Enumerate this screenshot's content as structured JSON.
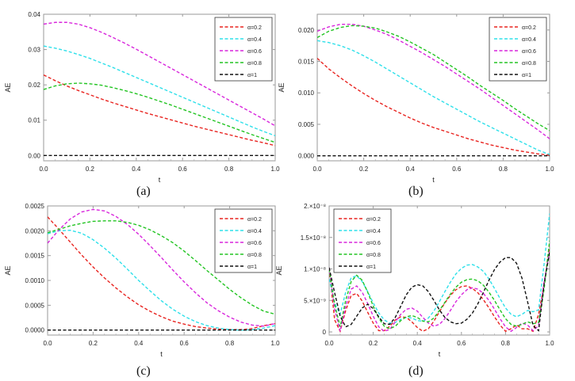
{
  "figure": {
    "captions": [
      "(a)",
      "(b)",
      "(c)",
      "(d)"
    ]
  },
  "chart_data": [
    {
      "type": "line",
      "panel": "(a)",
      "xlabel": "t",
      "ylabel": "AE",
      "xlim": [
        0,
        1
      ],
      "ylim": [
        -0.0015,
        0.04
      ],
      "xticks": [
        0,
        0.2,
        0.4,
        0.6,
        0.8,
        1
      ],
      "xtick_labels": [
        "0.0",
        "0.2",
        "0.4",
        "0.6",
        "0.8",
        "1.0"
      ],
      "yticks": [
        0,
        0.01,
        0.02,
        0.03,
        0.04
      ],
      "ytick_labels": [
        "0.00",
        "0.01",
        "0.02",
        "0.03",
        "0.04"
      ],
      "legend_position": "top-right",
      "x": [
        0,
        0.05,
        0.1,
        0.15,
        0.2,
        0.25,
        0.3,
        0.35,
        0.4,
        0.45,
        0.5,
        0.55,
        0.6,
        0.65,
        0.7,
        0.75,
        0.8,
        0.85,
        0.9,
        0.95,
        1
      ],
      "series": [
        {
          "name": "α=0.2",
          "color": "#e8231f",
          "values": [
            0.0228,
            0.0212,
            0.0197,
            0.0184,
            0.0172,
            0.016,
            0.0149,
            0.0139,
            0.0129,
            0.0119,
            0.011,
            0.0101,
            0.0092,
            0.0083,
            0.0075,
            0.0067,
            0.0059,
            0.0051,
            0.0043,
            0.0036,
            0.0028
          ]
        },
        {
          "name": "α=0.4",
          "color": "#2ee0ea",
          "values": [
            0.031,
            0.0304,
            0.0296,
            0.0286,
            0.0275,
            0.0262,
            0.0249,
            0.0235,
            0.0221,
            0.0207,
            0.0193,
            0.0179,
            0.0165,
            0.0151,
            0.0137,
            0.0123,
            0.0109,
            0.0095,
            0.0081,
            0.0068,
            0.0056
          ]
        },
        {
          "name": "α=0.6",
          "color": "#d826dc",
          "values": [
            0.0372,
            0.0377,
            0.0377,
            0.0372,
            0.0362,
            0.0349,
            0.0334,
            0.0318,
            0.0301,
            0.0283,
            0.0265,
            0.0247,
            0.0229,
            0.0211,
            0.0193,
            0.0175,
            0.0157,
            0.0139,
            0.0121,
            0.0103,
            0.0084
          ]
        },
        {
          "name": "α=0.8",
          "color": "#22c422",
          "values": [
            0.0187,
            0.0197,
            0.0203,
            0.0205,
            0.0203,
            0.0199,
            0.0192,
            0.0184,
            0.0175,
            0.0165,
            0.0154,
            0.0143,
            0.0131,
            0.0119,
            0.0107,
            0.0095,
            0.0083,
            0.0071,
            0.0059,
            0.0048,
            0.0037
          ]
        },
        {
          "name": "α=1",
          "color": "#111111",
          "values": [
            0,
            0,
            0,
            0,
            0,
            0,
            0,
            0,
            0,
            0,
            0,
            0,
            0,
            0,
            0,
            0,
            0,
            0,
            0,
            0,
            0
          ]
        }
      ]
    },
    {
      "type": "line",
      "panel": "(b)",
      "xlabel": "t",
      "ylabel": "AE",
      "xlim": [
        0,
        1
      ],
      "ylim": [
        -0.0008,
        0.0225
      ],
      "xticks": [
        0,
        0.2,
        0.4,
        0.6,
        0.8,
        1
      ],
      "xtick_labels": [
        "0.0",
        "0.2",
        "0.4",
        "0.6",
        "0.8",
        "1.0"
      ],
      "yticks": [
        0,
        0.005,
        0.01,
        0.015,
        0.02
      ],
      "ytick_labels": [
        "0.000",
        "0.005",
        "0.010",
        "0.015",
        "0.020"
      ],
      "legend_position": "top-right",
      "x": [
        0,
        0.05,
        0.1,
        0.15,
        0.2,
        0.25,
        0.3,
        0.35,
        0.4,
        0.45,
        0.5,
        0.55,
        0.6,
        0.65,
        0.7,
        0.75,
        0.8,
        0.85,
        0.9,
        0.95,
        1
      ],
      "series": [
        {
          "name": "α=0.2",
          "color": "#e8231f",
          "values": [
            0.0155,
            0.0138,
            0.0124,
            0.0111,
            0.0099,
            0.0088,
            0.0078,
            0.0069,
            0.006,
            0.0052,
            0.0045,
            0.0039,
            0.0033,
            0.0027,
            0.0022,
            0.0017,
            0.0013,
            0.0009,
            0.0006,
            0.0003,
            0.0001
          ]
        },
        {
          "name": "α=0.4",
          "color": "#2ee0ea",
          "values": [
            0.0183,
            0.018,
            0.0175,
            0.0168,
            0.0159,
            0.0149,
            0.0138,
            0.0127,
            0.0116,
            0.0105,
            0.0094,
            0.0084,
            0.0074,
            0.0064,
            0.0054,
            0.0045,
            0.0036,
            0.0027,
            0.0018,
            0.0009,
            0.0002
          ]
        },
        {
          "name": "α=0.6",
          "color": "#d826dc",
          "values": [
            0.0198,
            0.0205,
            0.0209,
            0.0209,
            0.0206,
            0.02,
            0.0193,
            0.0184,
            0.0174,
            0.0164,
            0.0153,
            0.0142,
            0.013,
            0.0118,
            0.0106,
            0.0093,
            0.008,
            0.0067,
            0.0054,
            0.0041,
            0.0027
          ]
        },
        {
          "name": "α=0.8",
          "color": "#22c422",
          "values": [
            0.0188,
            0.0198,
            0.0204,
            0.0207,
            0.0206,
            0.0203,
            0.0197,
            0.019,
            0.0181,
            0.0171,
            0.0161,
            0.0149,
            0.0137,
            0.0125,
            0.0112,
            0.01,
            0.0088,
            0.0075,
            0.0063,
            0.0051,
            0.004
          ]
        },
        {
          "name": "α=1",
          "color": "#111111",
          "values": [
            0,
            0,
            0,
            0,
            0,
            0,
            0,
            0,
            0,
            0,
            0,
            0,
            0,
            0,
            0,
            0,
            0,
            0,
            0,
            0,
            0
          ]
        }
      ]
    },
    {
      "type": "line",
      "panel": "(c)",
      "xlabel": "t",
      "ylabel": "AE",
      "xlim": [
        0,
        1
      ],
      "ylim": [
        -0.0001,
        0.0025
      ],
      "xticks": [
        0,
        0.2,
        0.4,
        0.6,
        0.8,
        1
      ],
      "xtick_labels": [
        "0.0",
        "0.2",
        "0.4",
        "0.6",
        "0.8",
        "1.0"
      ],
      "yticks": [
        0,
        0.0005,
        0.001,
        0.0015,
        0.002,
        0.0025
      ],
      "ytick_labels": [
        "0.0000",
        "0.0005",
        "0.0010",
        "0.0015",
        "0.0020",
        "0.0025"
      ],
      "legend_position": "top-right",
      "x": [
        0,
        0.05,
        0.1,
        0.15,
        0.2,
        0.25,
        0.3,
        0.35,
        0.4,
        0.45,
        0.5,
        0.55,
        0.6,
        0.65,
        0.7,
        0.75,
        0.8,
        0.85,
        0.9,
        0.95,
        1
      ],
      "series": [
        {
          "name": "α=0.2",
          "color": "#e8231f",
          "values": [
            0.00228,
            0.00203,
            0.00177,
            0.00151,
            0.00127,
            0.00105,
            0.00085,
            0.00067,
            0.00051,
            0.00038,
            0.00027,
            0.00018,
            0.00012,
            7e-05,
            4e-05,
            2e-05,
            1e-05,
            1e-05,
            3e-05,
            9e-05,
            0.00013
          ]
        },
        {
          "name": "α=0.4",
          "color": "#2ee0ea",
          "values": [
            0.00194,
            0.002,
            0.00201,
            0.00195,
            0.00182,
            0.00165,
            0.00145,
            0.00123,
            0.001,
            0.00079,
            0.00059,
            0.00042,
            0.00028,
            0.00017,
            9e-05,
            4e-05,
            1e-05,
            0.0,
            1e-05,
            4e-05,
            9e-05
          ]
        },
        {
          "name": "α=0.6",
          "color": "#d826dc",
          "values": [
            0.00175,
            0.00202,
            0.00224,
            0.00238,
            0.00243,
            0.0024,
            0.00229,
            0.00213,
            0.00193,
            0.0017,
            0.00146,
            0.00121,
            0.00097,
            0.00075,
            0.00055,
            0.00039,
            0.00026,
            0.00016,
            0.0001,
            8e-05,
            0.00013
          ]
        },
        {
          "name": "α=0.8",
          "color": "#22c422",
          "values": [
            0.00196,
            0.00203,
            0.0021,
            0.00215,
            0.00219,
            0.0022,
            0.0022,
            0.00217,
            0.00211,
            0.00202,
            0.0019,
            0.00176,
            0.00159,
            0.0014,
            0.0012,
            0.00101,
            0.00082,
            0.00065,
            0.0005,
            0.00038,
            0.00032
          ]
        },
        {
          "name": "α=1",
          "color": "#111111",
          "values": [
            0,
            0,
            0,
            0,
            0,
            0,
            0,
            0,
            0,
            0,
            0,
            0,
            0,
            0,
            0,
            0,
            0,
            0,
            0,
            0,
            0
          ]
        }
      ]
    },
    {
      "type": "line",
      "panel": "(d)",
      "xlabel": "t",
      "ylabel": "AE",
      "xlim": [
        0,
        1
      ],
      "ylim": [
        -5e-10,
        2e-08
      ],
      "xticks": [
        0,
        0.2,
        0.4,
        0.6,
        0.8,
        1
      ],
      "xtick_labels": [
        "0.0",
        "0.2",
        "0.4",
        "0.6",
        "0.8",
        "1.0"
      ],
      "yticks": [
        0,
        5e-09,
        1e-08,
        1.5e-08,
        2e-08
      ],
      "ytick_labels": [
        "0",
        "5.×10⁻⁹",
        "1.×10⁻⁸",
        "1.5×10⁻⁸",
        "2.×10⁻⁸"
      ],
      "legend_position": "top-left",
      "x": [
        0,
        0.025,
        0.05,
        0.075,
        0.1,
        0.125,
        0.15,
        0.175,
        0.2,
        0.225,
        0.25,
        0.275,
        0.3,
        0.325,
        0.35,
        0.375,
        0.4,
        0.425,
        0.45,
        0.475,
        0.5,
        0.525,
        0.55,
        0.575,
        0.6,
        0.625,
        0.65,
        0.675,
        0.7,
        0.725,
        0.75,
        0.775,
        0.8,
        0.825,
        0.85,
        0.875,
        0.9,
        0.925,
        0.95,
        0.975,
        1
      ],
      "series": [
        {
          "name": "α=0.2",
          "color": "#e8231f",
          "values": [
            1e-08,
            1.9e-09,
            1e-10,
            3.4e-09,
            5.8e-09,
            6.1e-09,
            4.9e-09,
            3.1e-09,
            1.4e-09,
            2e-10,
            2e-10,
            9e-10,
            1.9e-09,
            2.4e-09,
            2.3e-09,
            1.6e-09,
            7e-10,
            1e-10,
            5e-10,
            1.7e-09,
            3.2e-09,
            4.6e-09,
            5.8e-09,
            6.7e-09,
            7.2e-09,
            7.3e-09,
            6.9e-09,
            6.2e-09,
            5.1e-09,
            3.8e-09,
            2.4e-09,
            1.1e-09,
            1e-10,
            5e-10,
            1.1e-09,
            5e-10,
            5e-10,
            1e-10,
            2.8e-09,
            7.5e-09,
            1.35e-08
          ]
        },
        {
          "name": "α=0.4",
          "color": "#2ee0ea",
          "values": [
            8.4e-09,
            4.6e-09,
            2.8e-09,
            6.3e-09,
            8.6e-09,
            8.9e-09,
            8e-09,
            6.4e-09,
            4.6e-09,
            3e-09,
            1.9e-09,
            1.4e-09,
            1.5e-09,
            2e-09,
            2.3e-09,
            2.2e-09,
            1.8e-09,
            1.7e-09,
            2.2e-09,
            3.3e-09,
            4.8e-09,
            6.4e-09,
            7.9e-09,
            9.2e-09,
            1.01e-08,
            1.06e-08,
            1.07e-08,
            1.03e-08,
            9.6e-09,
            8.4e-09,
            6.9e-09,
            5.3e-09,
            3.8e-09,
            2.8e-09,
            2.4e-09,
            2.8e-09,
            3.4e-09,
            3.2e-09,
            3.5e-09,
            1.08e-08,
            1.88e-08
          ]
        },
        {
          "name": "α=0.6",
          "color": "#d826dc",
          "values": [
            1.02e-08,
            3.6e-09,
            1e-10,
            4.1e-09,
            6.8e-09,
            7.3e-09,
            6.3e-09,
            4.5e-09,
            2.5e-09,
            8e-10,
            1e-10,
            4e-10,
            1.6e-09,
            2.8e-09,
            3.6e-09,
            3.8e-09,
            3.3e-09,
            2.3e-09,
            1.4e-09,
            9e-10,
            1.2e-09,
            2.1e-09,
            3.4e-09,
            4.8e-09,
            5.9e-09,
            6.7e-09,
            7e-09,
            6.8e-09,
            6.1e-09,
            5e-09,
            3.6e-09,
            2.1e-09,
            8e-10,
            1e-10,
            7e-10,
            1.4e-09,
            1.1e-09,
            2e-10,
            1e-09,
            8e-09,
            1.28e-08
          ]
        },
        {
          "name": "α=0.8",
          "color": "#22c422",
          "values": [
            1e-08,
            4.4e-09,
            8e-10,
            5e-09,
            8e-09,
            9e-09,
            8.2e-09,
            6.3e-09,
            4.1e-09,
            2.2e-09,
            9e-10,
            5e-10,
            9e-10,
            1.8e-09,
            2.4e-09,
            2.6e-09,
            2.3e-09,
            1.7e-09,
            1.6e-09,
            2.2e-09,
            3.4e-09,
            4.7e-09,
            6e-09,
            7.1e-09,
            7.9e-09,
            8.3e-09,
            8.4e-09,
            8.1e-09,
            7.4e-09,
            6.3e-09,
            5e-09,
            3.5e-09,
            2.1e-09,
            1.2e-09,
            9e-10,
            1.2e-09,
            1.6e-09,
            1.3e-09,
            1.5e-09,
            6.8e-09,
            1.45e-08
          ]
        },
        {
          "name": "α=1",
          "color": "#111111",
          "values": [
            1.02e-08,
            6.2e-09,
            2.5e-09,
            8e-10,
            1.2e-09,
            2.5e-09,
            3.8e-09,
            4.4e-09,
            3.7e-09,
            2.4e-09,
            1.3e-09,
            1.2e-09,
            2.3e-09,
            4.1e-09,
            5.9e-09,
            7.1e-09,
            7.5e-09,
            7.3e-09,
            6.4e-09,
            5e-09,
            3.5e-09,
            2.3e-09,
            1.6e-09,
            1.3e-09,
            1.4e-09,
            2e-09,
            3e-09,
            4.5e-09,
            6.3e-09,
            8.2e-09,
            9.9e-09,
            1.11e-08,
            1.18e-08,
            1.18e-08,
            1.09e-08,
            8.5e-09,
            4.8e-09,
            1e-09,
            2e-10,
            7.6e-09,
            1.27e-08
          ]
        }
      ]
    }
  ]
}
